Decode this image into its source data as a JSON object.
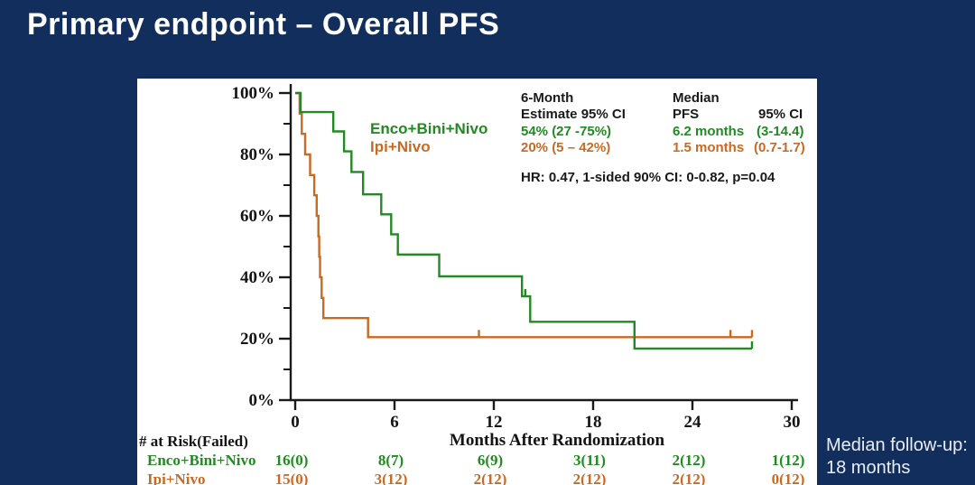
{
  "slide": {
    "title": "Primary endpoint – Overall PFS",
    "note_line1": "Median follow-up:",
    "note_line2": "18 months"
  },
  "colors": {
    "background": "#122e5c",
    "panel": "#ffffff",
    "green": "#228a22",
    "orange": "#c96a22",
    "axis": "#1a1a1a",
    "title_text": "#ffffff",
    "note_text": "#e9edf4"
  },
  "stats": {
    "col1_header1": "6-Month",
    "col1_header2": "Estimate 95% CI",
    "col1_green": "54% (27 -75%)",
    "col1_orange": "20% (5 – 42%)",
    "col2_header1": "Median",
    "col2_header2": "PFS",
    "col3_header2": "95% CI",
    "col2_green": "6.2 months",
    "col3_green": "(3-14.4)",
    "col2_orange": "1.5 months",
    "col3_orange": "(0.7-1.7)",
    "hr_line": "HR: 0.47, 1-sided 90% CI: 0-0.82, p=0.04"
  },
  "chart_data": {
    "type": "line",
    "subtype": "kaplan-meier-step",
    "title": "",
    "xlabel": "Months After Randomization",
    "ylabel": "",
    "xlim": [
      0,
      30
    ],
    "ylim": [
      0,
      100
    ],
    "x_ticks": [
      0,
      6,
      12,
      18,
      24,
      30
    ],
    "y_ticks_major": [
      0,
      20,
      40,
      60,
      80,
      100
    ],
    "y_ticks_minor": [
      10,
      30,
      50,
      70,
      90
    ],
    "y_tick_format": "percent",
    "grid": false,
    "legend_position": "inside-top-left",
    "series": [
      {
        "name": "Enco+Bini+Nivo",
        "color": "#228a22",
        "steps": [
          [
            0,
            100
          ],
          [
            0.33,
            93.8
          ],
          [
            2.3,
            87.5
          ],
          [
            2.95,
            81
          ],
          [
            3.4,
            74.3
          ],
          [
            4.1,
            67
          ],
          [
            5.2,
            60.5
          ],
          [
            5.8,
            54
          ],
          [
            6.2,
            47.4
          ],
          [
            8.7,
            40.3
          ],
          [
            13.7,
            33.8
          ],
          [
            14.2,
            25.5
          ],
          [
            20.5,
            16.8
          ]
        ],
        "end_month": 27.6,
        "censor_marks": [
          [
            13.9,
            33.8
          ],
          [
            27.6,
            16.8
          ]
        ]
      },
      {
        "name": "Ipi+Nivo",
        "color": "#c96a22",
        "steps": [
          [
            0,
            100
          ],
          [
            0.27,
            93.3
          ],
          [
            0.4,
            86.7
          ],
          [
            0.6,
            80
          ],
          [
            0.9,
            73.3
          ],
          [
            1.15,
            66.7
          ],
          [
            1.3,
            60
          ],
          [
            1.4,
            53.3
          ],
          [
            1.45,
            46.7
          ],
          [
            1.5,
            40
          ],
          [
            1.6,
            33.3
          ],
          [
            1.7,
            26.7
          ],
          [
            4.4,
            20.5
          ]
        ],
        "end_month": 27.6,
        "censor_marks": [
          [
            11.1,
            20.5
          ],
          [
            26.3,
            20.5
          ],
          [
            27.6,
            20.5
          ]
        ]
      }
    ]
  },
  "risk_table": {
    "header": "# at Risk(Failed)",
    "months": [
      0,
      6,
      12,
      18,
      24,
      30
    ],
    "rows": [
      {
        "label": "Enco+Bini+Nivo",
        "color": "#228a22",
        "values": [
          "16(0)",
          "8(7)",
          "6(9)",
          "3(11)",
          "2(12)",
          "1(12)"
        ]
      },
      {
        "label": "Ipi+Nivo",
        "color": "#c96a22",
        "values": [
          "15(0)",
          "3(12)",
          "2(12)",
          "2(12)",
          "2(12)",
          "0(12)"
        ]
      }
    ]
  }
}
